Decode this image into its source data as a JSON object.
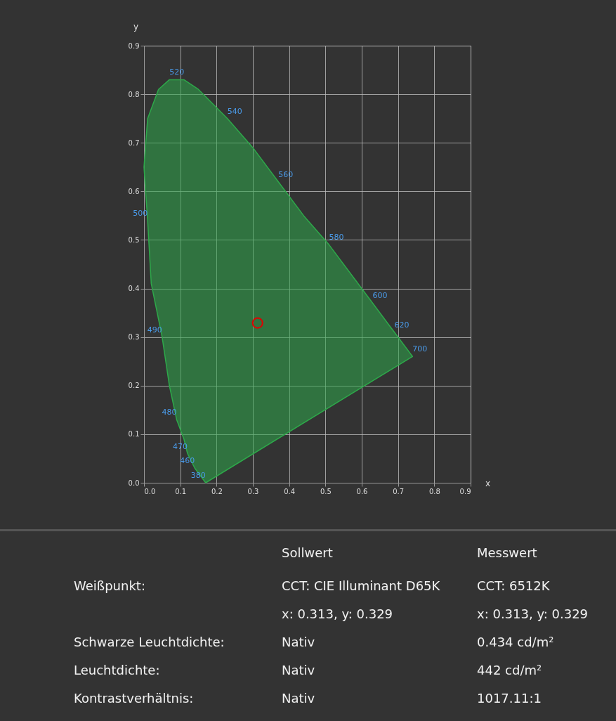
{
  "chart_data": [
    {
      "type": "scatter",
      "xlabel": "x",
      "ylabel": "y",
      "xlim": [
        0,
        0.9
      ],
      "ylim": [
        0,
        0.9
      ],
      "xticks": [
        {
          "value": 0,
          "label": "0.0"
        },
        0.1,
        0.2,
        0.3,
        0.4,
        0.5,
        0.6,
        0.7,
        0.8,
        0.9
      ],
      "yticks": [
        {
          "value": 0,
          "label": "0.0"
        },
        0.1,
        0.2,
        0.3,
        0.4,
        0.5,
        0.6,
        0.7,
        0.8,
        0.9
      ],
      "grid": true,
      "series": [
        {
          "type": "area",
          "color": "#2ea84a",
          "x": [
            0.17,
            0.14,
            0.12,
            0.11,
            0.09,
            0.07,
            0.05,
            0.02,
            0.01,
            0.0,
            0.01,
            0.04,
            0.07,
            0.11,
            0.15,
            0.23,
            0.3,
            0.37,
            0.44,
            0.51,
            0.58,
            0.63,
            0.67,
            0.69,
            0.72,
            0.74,
            0.17
          ],
          "values": [
            0.0,
            0.03,
            0.06,
            0.09,
            0.13,
            0.2,
            0.3,
            0.41,
            0.54,
            0.65,
            0.75,
            0.81,
            0.83,
            0.83,
            0.81,
            0.75,
            0.69,
            0.62,
            0.55,
            0.49,
            0.42,
            0.37,
            0.33,
            0.31,
            0.28,
            0.26,
            0.0
          ]
        },
        {
          "type": "scatter",
          "color": "#e00000",
          "marker": "circle",
          "x": [
            0.313
          ],
          "values": [
            0.329
          ]
        }
      ],
      "annotations": [
        {
          "text": "520",
          "x": 0.07,
          "y": 0.83
        },
        {
          "text": "540",
          "x": 0.23,
          "y": 0.75
        },
        {
          "text": "560",
          "x": 0.37,
          "y": 0.62
        },
        {
          "text": "580",
          "x": 0.51,
          "y": 0.49
        },
        {
          "text": "600",
          "x": 0.63,
          "y": 0.37
        },
        {
          "text": "620",
          "x": 0.69,
          "y": 0.31
        },
        {
          "text": "700",
          "x": 0.74,
          "y": 0.26
        },
        {
          "text": "500",
          "x": 0.01,
          "y": 0.54
        },
        {
          "text": "490",
          "x": 0.05,
          "y": 0.3
        },
        {
          "text": "480",
          "x": 0.09,
          "y": 0.13
        },
        {
          "text": "470",
          "x": 0.12,
          "y": 0.06
        },
        {
          "text": "460",
          "x": 0.14,
          "y": 0.03
        },
        {
          "text": "380",
          "x": 0.17,
          "y": 0.0
        }
      ]
    },
    {
      "type": "other",
      "annotations": [
        "Sollwert",
        "Messwert",
        "Weißpunkt:",
        "CCT: CIE Illuminant D65K",
        "CCT: 6512K",
        "x: 0.313, y: 0.329",
        "x: 0.313, y: 0.329",
        "Schwarze Leuchtdichte:",
        "Nativ",
        "0.434 cd/m²",
        "Leuchtdichte:",
        "Nativ",
        "442 cd/m²",
        "Kontrastverhältnis:",
        "Nativ",
        "1017.11:1"
      ]
    }
  ]
}
